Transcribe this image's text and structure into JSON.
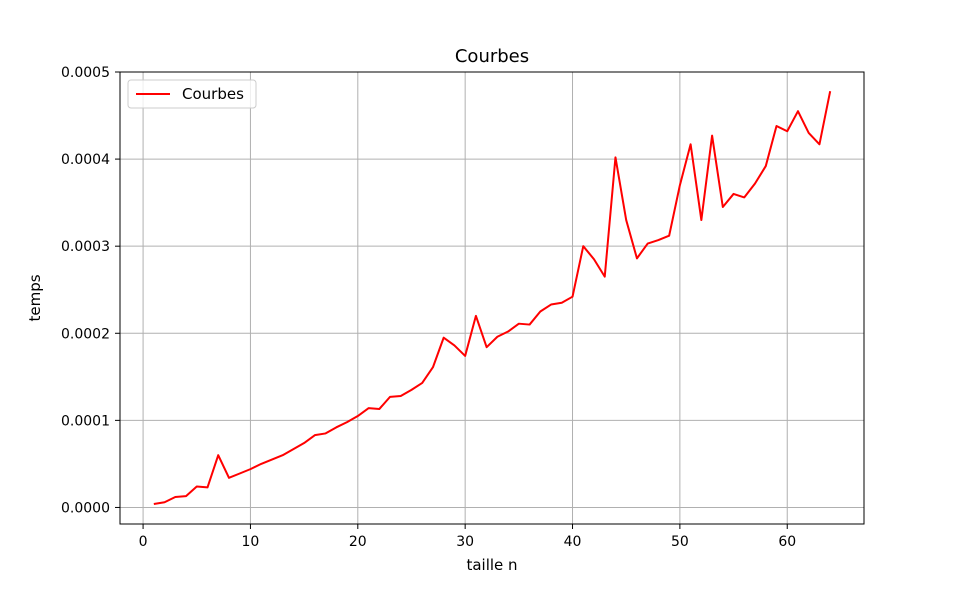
{
  "chart_data": {
    "type": "line",
    "title": "Courbes",
    "xlabel": "taille n",
    "ylabel": "temps",
    "xlim": [
      -2.15,
      67.15
    ],
    "ylim": [
      -1.9e-05,
      0.0005
    ],
    "xticks": [
      0,
      10,
      20,
      30,
      40,
      50,
      60
    ],
    "xtick_labels": [
      "0",
      "10",
      "20",
      "30",
      "40",
      "50",
      "60"
    ],
    "yticks": [
      0.0,
      0.0001,
      0.0002,
      0.0003,
      0.0004,
      0.0005
    ],
    "ytick_labels": [
      "0.0000",
      "0.0001",
      "0.0002",
      "0.0003",
      "0.0004",
      "0.0005"
    ],
    "grid": true,
    "legend_position": "top-left",
    "series": [
      {
        "name": "Courbes",
        "color": "#ff0000",
        "x": [
          1,
          2,
          3,
          4,
          5,
          6,
          7,
          8,
          9,
          10,
          11,
          12,
          13,
          14,
          15,
          16,
          17,
          18,
          19,
          20,
          21,
          22,
          23,
          24,
          25,
          26,
          27,
          28,
          29,
          30,
          31,
          32,
          33,
          34,
          35,
          36,
          37,
          38,
          39,
          40,
          41,
          42,
          43,
          44,
          45,
          46,
          47,
          48,
          49,
          50,
          51,
          52,
          53,
          54,
          55,
          56,
          57,
          58,
          59,
          60,
          61,
          62,
          63,
          64
        ],
        "y": [
          4e-06,
          6e-06,
          1.2e-05,
          1.3e-05,
          2.4e-05,
          2.3e-05,
          6e-05,
          3.4e-05,
          3.9e-05,
          4.4e-05,
          5e-05,
          5.5e-05,
          6e-05,
          6.7e-05,
          7.4e-05,
          8.3e-05,
          8.5e-05,
          9.2e-05,
          9.8e-05,
          0.000105,
          0.000114,
          0.000113,
          0.000127,
          0.000128,
          0.000135,
          0.000143,
          0.000161,
          0.000195,
          0.000186,
          0.000174,
          0.00022,
          0.000184,
          0.000196,
          0.000202,
          0.000211,
          0.00021,
          0.000225,
          0.000233,
          0.000235,
          0.000242,
          0.0003,
          0.000285,
          0.000265,
          0.000402,
          0.00033,
          0.000286,
          0.000303,
          0.000307,
          0.000312,
          0.00037,
          0.000417,
          0.00033,
          0.000427,
          0.000345,
          0.00036,
          0.000356,
          0.000372,
          0.000392,
          0.000438,
          0.000432,
          0.000455,
          0.00043,
          0.000417,
          0.000478
        ]
      }
    ]
  }
}
